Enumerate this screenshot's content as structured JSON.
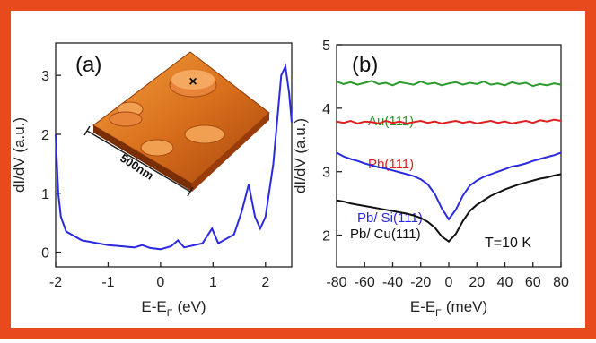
{
  "chart_data": [
    {
      "type": "line",
      "panel_label": "(a)",
      "ylabel": "dI/dV (a.u.)",
      "xlabel": [
        "E-E",
        "F",
        "(eV)"
      ],
      "xlim": [
        -2,
        2.5
      ],
      "ylim": [
        -0.25,
        3.55
      ],
      "xticks": [
        -2,
        -1,
        0,
        1,
        2
      ],
      "yticks": [
        0,
        1,
        2,
        3
      ],
      "inset_labels": [
        "500nm",
        "×"
      ],
      "x": [
        -2,
        -1.95,
        -1.9,
        -1.8,
        -1.5,
        -1.0,
        -0.5,
        -0.35,
        -0.2,
        0,
        0.2,
        0.33,
        0.45,
        0.8,
        0.98,
        1.1,
        1.4,
        1.55,
        1.68,
        1.8,
        1.9,
        2.0,
        2.15,
        2.3,
        2.38,
        2.45,
        2.5
      ],
      "series": [
        {
          "name": null,
          "color": "#2a2ae0",
          "values": [
            2.0,
            1.0,
            0.6,
            0.35,
            0.2,
            0.12,
            0.08,
            0.12,
            0.07,
            0.05,
            0.1,
            0.2,
            0.08,
            0.15,
            0.4,
            0.15,
            0.3,
            0.7,
            1.15,
            0.6,
            0.4,
            0.6,
            1.5,
            3.0,
            3.15,
            2.7,
            2.2
          ]
        }
      ]
    },
    {
      "type": "line",
      "panel_label": "(b)",
      "ylabel": "dI/dV (a.u.)",
      "xlabel": [
        "E-E",
        "F",
        "(meV)"
      ],
      "xlim": [
        -80,
        80
      ],
      "ylim": [
        1.5,
        5
      ],
      "xticks": [
        -80,
        -60,
        -40,
        -20,
        0,
        20,
        40,
        60,
        80
      ],
      "yticks": [
        2,
        3,
        4,
        5
      ],
      "annotation": "T=10 K",
      "x": [
        -80,
        -75,
        -70,
        -65,
        -60,
        -55,
        -50,
        -45,
        -40,
        -35,
        -30,
        -25,
        -20,
        -15,
        -10,
        -5,
        0,
        5,
        10,
        15,
        20,
        25,
        30,
        35,
        40,
        45,
        50,
        55,
        60,
        65,
        70,
        75,
        80
      ],
      "series": [
        {
          "name": "Au(111)",
          "color": "#2a9a2a",
          "values": [
            4.42,
            4.38,
            4.41,
            4.37,
            4.4,
            4.43,
            4.38,
            4.4,
            4.36,
            4.41,
            4.39,
            4.37,
            4.42,
            4.38,
            4.4,
            4.36,
            4.39,
            4.41,
            4.37,
            4.4,
            4.38,
            4.42,
            4.37,
            4.39,
            4.36,
            4.41,
            4.38,
            4.4,
            4.35,
            4.38,
            4.36,
            4.39,
            4.37
          ]
        },
        {
          "name": "Pb(111)",
          "color": "#e02020",
          "values": [
            3.79,
            3.77,
            3.8,
            3.76,
            3.79,
            3.78,
            3.76,
            3.8,
            3.77,
            3.79,
            3.76,
            3.78,
            3.8,
            3.77,
            3.79,
            3.76,
            3.78,
            3.8,
            3.77,
            3.79,
            3.76,
            3.78,
            3.8,
            3.77,
            3.79,
            3.76,
            3.78,
            3.8,
            3.77,
            3.81,
            3.79,
            3.82,
            3.8
          ]
        },
        {
          "name": "Pb/ Si(111)",
          "color": "#2a2ae0",
          "values": [
            3.3,
            3.24,
            3.2,
            3.17,
            3.13,
            3.1,
            3.07,
            3.05,
            3.02,
            2.99,
            2.96,
            2.93,
            2.88,
            2.8,
            2.65,
            2.42,
            2.25,
            2.4,
            2.62,
            2.78,
            2.86,
            2.92,
            2.96,
            3.0,
            3.04,
            3.08,
            3.1,
            3.13,
            3.17,
            3.2,
            3.23,
            3.26,
            3.3
          ]
        },
        {
          "name": "Pb/ Cu(111)",
          "color": "#111111",
          "values": [
            2.55,
            2.53,
            2.5,
            2.48,
            2.46,
            2.44,
            2.42,
            2.4,
            2.38,
            2.36,
            2.34,
            2.31,
            2.27,
            2.21,
            2.12,
            1.98,
            1.9,
            2.02,
            2.22,
            2.38,
            2.48,
            2.55,
            2.62,
            2.67,
            2.72,
            2.76,
            2.8,
            2.83,
            2.86,
            2.89,
            2.91,
            2.94,
            2.96
          ]
        }
      ]
    }
  ]
}
